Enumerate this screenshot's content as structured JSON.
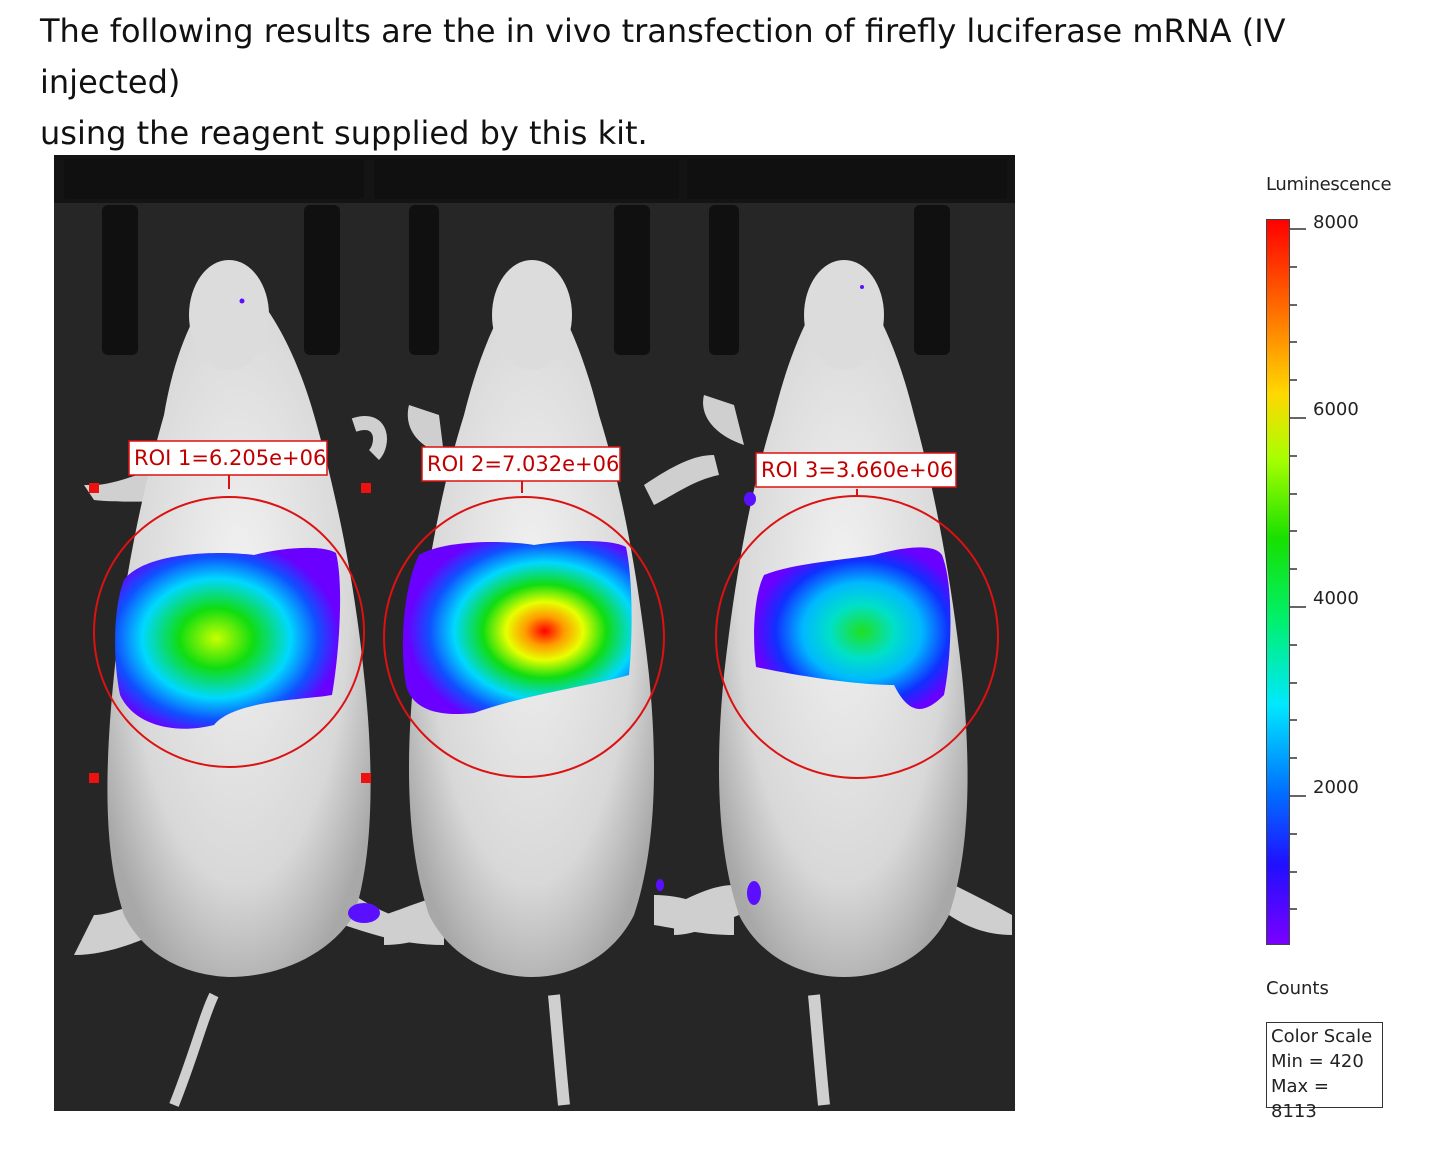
{
  "intro": {
    "line1": "The following results are the in vivo transfection of firefly luciferase mRNA (IV injected)",
    "line2": "using the reagent supplied by this kit."
  },
  "figure": {
    "rois": [
      {
        "label": "ROI 1=6.205e+06"
      },
      {
        "label": "ROI 2=7.032e+06"
      },
      {
        "label": "ROI 3=3.660e+06"
      }
    ]
  },
  "legend": {
    "title": "Luminescence",
    "ticks": [
      "8000",
      "6000",
      "4000",
      "2000"
    ],
    "units": "Counts",
    "scale_box": {
      "title": "Color Scale",
      "min": "Min = 420",
      "max": "Max = 8113"
    }
  }
}
